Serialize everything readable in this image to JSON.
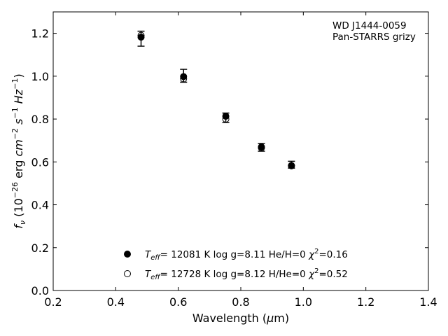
{
  "chart_data": {
    "type": "scatter",
    "xlabel": "Wavelength (μm)",
    "ylabel": "f_ν (10^-26 erg cm^-2 s^-1 Hz^-1)",
    "xlim": [
      0.2,
      1.4
    ],
    "ylim": [
      0.0,
      1.3
    ],
    "xticks": [
      "0.2",
      "0.4",
      "0.6",
      "0.8",
      "1.0",
      "1.2",
      "1.4"
    ],
    "yticks": [
      "0.0",
      "0.2",
      "0.4",
      "0.6",
      "0.8",
      "1.0",
      "1.2"
    ],
    "grid": false,
    "legend_position": "bottom-center",
    "annotation": [
      "WD J1444-0059",
      "Pan-STARRS grizy"
    ],
    "observed": {
      "x": [
        0.481,
        0.617,
        0.752,
        0.866,
        0.962
      ],
      "y": [
        1.175,
        1.002,
        0.806,
        0.668,
        0.587
      ],
      "yerr": [
        0.035,
        0.03,
        0.022,
        0.018,
        0.016
      ]
    },
    "series": [
      {
        "name": "Teff= 12081 K  log g=8.11  He/H=0  χ²=0.16",
        "marker": "filled-circle",
        "x": [
          0.481,
          0.617,
          0.752,
          0.866,
          0.962
        ],
        "y": [
          1.182,
          0.998,
          0.813,
          0.67,
          0.583
        ]
      },
      {
        "name": "Teff= 12728 K  log g=8.12  H/He=0  χ²=0.52",
        "marker": "open-circle",
        "x": [
          0.481,
          0.617,
          0.752,
          0.866,
          0.962
        ],
        "y": [
          1.19,
          0.988,
          0.8,
          0.666,
          0.582
        ]
      }
    ]
  }
}
